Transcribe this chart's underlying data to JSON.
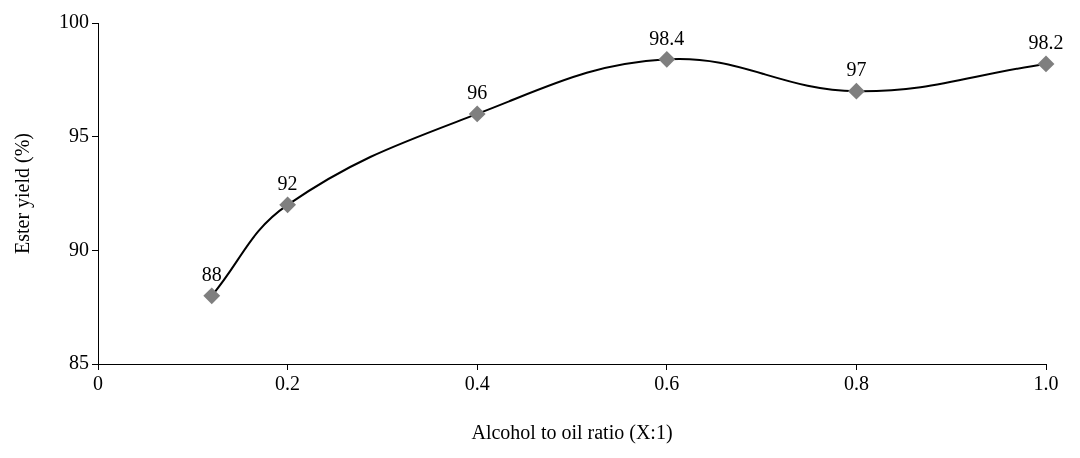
{
  "chart_data": {
    "type": "line",
    "xlabel": "Alcohol to oil ratio (X:1)",
    "ylabel": "Ester yield (%)",
    "x": [
      0.12,
      0.2,
      0.4,
      0.6,
      0.8,
      1.0
    ],
    "series": [
      {
        "color": "#000000",
        "values": [
          88,
          92,
          96,
          98.4,
          97,
          98.2
        ]
      }
    ],
    "xlim": [
      0,
      1.0
    ],
    "xticks": [
      0,
      0.2,
      0.4,
      0.6,
      0.8,
      {
        "value": 1.0,
        "label": "1.0"
      }
    ],
    "ylim": [
      85,
      100
    ],
    "yticks": [
      85,
      90,
      95,
      100
    ],
    "grid": false,
    "legend": false,
    "marker": "diamond",
    "line_style": "solid",
    "data_labels": true
  }
}
